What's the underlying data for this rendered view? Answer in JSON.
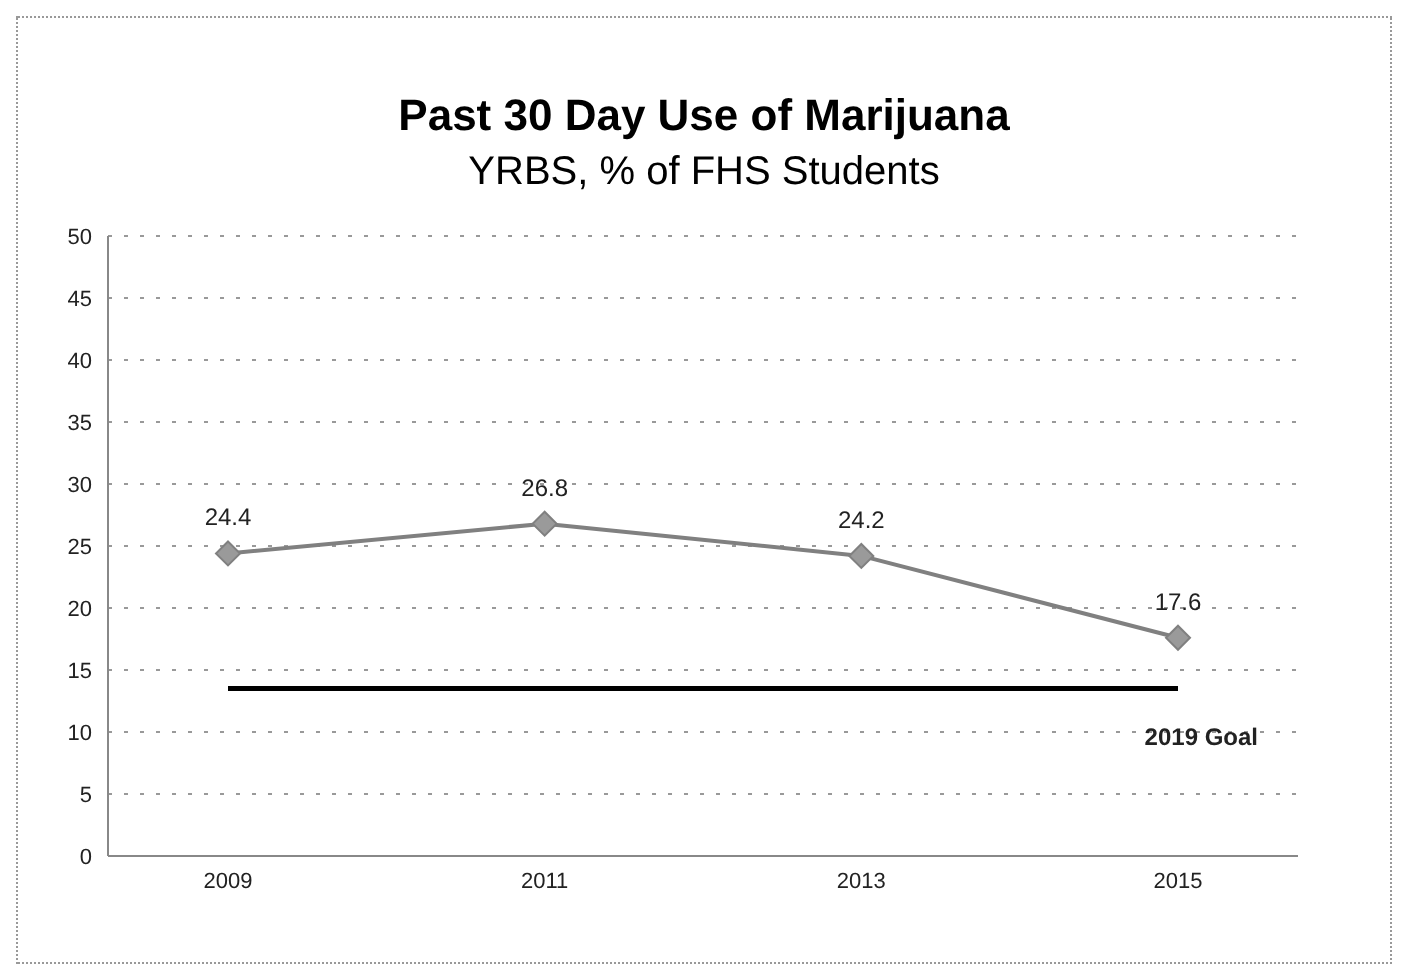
{
  "chart_data": {
    "type": "line",
    "title": "Past 30 Day Use of Marijuana",
    "subtitle": "YRBS, % of FHS Students",
    "categories": [
      "2009",
      "2011",
      "2013",
      "2015"
    ],
    "series": [
      {
        "color": "#808080",
        "values": [
          24.4,
          26.8,
          24.2,
          17.6
        ],
        "value_labels": [
          "24.4",
          "26.8",
          "24.2",
          "17.6"
        ],
        "marker": "diamond"
      },
      {
        "name": "2019 Goal",
        "color": "#000000",
        "values": [
          13.5,
          13.5,
          13.5,
          13.5
        ],
        "marker": "none"
      }
    ],
    "ylim": [
      0,
      50
    ],
    "yticks": [
      0,
      5,
      10,
      15,
      20,
      25,
      30,
      35,
      40,
      45,
      50
    ],
    "grid": "y",
    "legend": false,
    "line_style": "solid"
  }
}
